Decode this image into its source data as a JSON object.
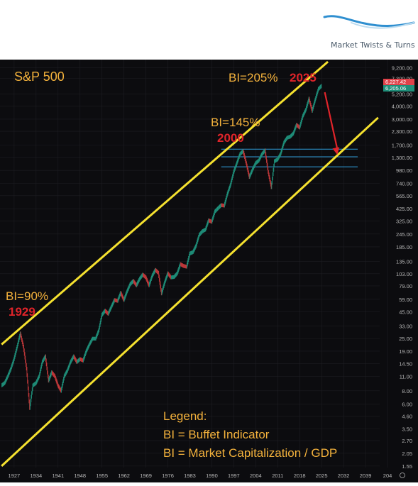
{
  "brand": {
    "name": "Market Twists & Turns"
  },
  "chart_data": {
    "type": "line",
    "title": "S&P 500",
    "scale": "log",
    "ylim": [
      1.5,
      11000
    ],
    "x_ticks": [
      "1927",
      "1934",
      "1941",
      "1948",
      "1955",
      "1962",
      "1969",
      "1976",
      "1983",
      "1990",
      "1997",
      "2004",
      "2011",
      "2018",
      "2025",
      "2032",
      "2039",
      "204"
    ],
    "y_ticks": [
      "9,200.00",
      "7,300.00",
      "5,200.00",
      "4,000.00",
      "3,000.00",
      "2,300.00",
      "1,700.00",
      "1,300.00",
      "980.00",
      "740.00",
      "565.00",
      "425.00",
      "325.00",
      "245.00",
      "185.00",
      "135.00",
      "103.00",
      "79.00",
      "59.00",
      "45.00",
      "33.00",
      "25.00",
      "19.00",
      "14.50",
      "11.00",
      "8.00",
      "6.00",
      "4.60",
      "3.50",
      "2.70",
      "2.05",
      "1.55"
    ],
    "price_labels": {
      "current": "6,227.42",
      "previous": "6,205.06"
    },
    "series": [
      {
        "values": [
          [
            1923,
            9
          ],
          [
            1924,
            9.5
          ],
          [
            1925,
            11
          ],
          [
            1926,
            13
          ],
          [
            1927,
            16
          ],
          [
            1928,
            21
          ],
          [
            1929,
            28
          ],
          [
            1930,
            21
          ],
          [
            1931,
            13
          ],
          [
            1932,
            5.5
          ],
          [
            1933,
            9
          ],
          [
            1934,
            9.5
          ],
          [
            1935,
            11
          ],
          [
            1936,
            15
          ],
          [
            1937,
            17
          ],
          [
            1938,
            10
          ],
          [
            1939,
            12
          ],
          [
            1940,
            11
          ],
          [
            1941,
            9
          ],
          [
            1942,
            8
          ],
          [
            1943,
            11
          ],
          [
            1944,
            12.5
          ],
          [
            1945,
            15
          ],
          [
            1946,
            17
          ],
          [
            1947,
            15
          ],
          [
            1948,
            16
          ],
          [
            1949,
            15.5
          ],
          [
            1950,
            19
          ],
          [
            1951,
            22
          ],
          [
            1952,
            25
          ],
          [
            1953,
            25
          ],
          [
            1954,
            30
          ],
          [
            1955,
            42
          ],
          [
            1956,
            46
          ],
          [
            1957,
            43
          ],
          [
            1958,
            50
          ],
          [
            1959,
            58
          ],
          [
            1960,
            57
          ],
          [
            1961,
            68
          ],
          [
            1962,
            58
          ],
          [
            1963,
            70
          ],
          [
            1964,
            82
          ],
          [
            1965,
            88
          ],
          [
            1966,
            80
          ],
          [
            1967,
            92
          ],
          [
            1968,
            101
          ],
          [
            1969,
            95
          ],
          [
            1970,
            80
          ],
          [
            1971,
            98
          ],
          [
            1972,
            112
          ],
          [
            1973,
            105
          ],
          [
            1974,
            67
          ],
          [
            1975,
            85
          ],
          [
            1976,
            104
          ],
          [
            1977,
            95
          ],
          [
            1978,
            96
          ],
          [
            1979,
            104
          ],
          [
            1980,
            127
          ],
          [
            1981,
            122
          ],
          [
            1982,
            120
          ],
          [
            1983,
            160
          ],
          [
            1984,
            165
          ],
          [
            1985,
            190
          ],
          [
            1986,
            240
          ],
          [
            1987,
            260
          ],
          [
            1988,
            270
          ],
          [
            1989,
            330
          ],
          [
            1990,
            320
          ],
          [
            1991,
            400
          ],
          [
            1992,
            430
          ],
          [
            1993,
            460
          ],
          [
            1994,
            455
          ],
          [
            1995,
            590
          ],
          [
            1996,
            720
          ],
          [
            1997,
            950
          ],
          [
            1998,
            1150
          ],
          [
            1999,
            1400
          ],
          [
            2000,
            1500
          ],
          [
            2001,
            1150
          ],
          [
            2002,
            850
          ],
          [
            2003,
            1000
          ],
          [
            2004,
            1150
          ],
          [
            2005,
            1220
          ],
          [
            2006,
            1400
          ],
          [
            2007,
            1520
          ],
          [
            2008,
            950
          ],
          [
            2009,
            680
          ],
          [
            2010,
            1200
          ],
          [
            2011,
            1250
          ],
          [
            2012,
            1420
          ],
          [
            2013,
            1800
          ],
          [
            2014,
            2000
          ],
          [
            2015,
            2050
          ],
          [
            2016,
            2200
          ],
          [
            2017,
            2650
          ],
          [
            2018,
            2500
          ],
          [
            2019,
            3200
          ],
          [
            2020,
            3700
          ],
          [
            2021,
            4700
          ],
          [
            2022,
            3600
          ],
          [
            2023,
            4600
          ],
          [
            2024,
            5800
          ],
          [
            2025,
            6227
          ]
        ]
      }
    ],
    "channel": {
      "upper": [
        [
          1923,
          22
        ],
        [
          2027,
          10500
        ]
      ],
      "lower": [
        [
          1923,
          1.55
        ],
        [
          2043,
          3100
        ]
      ],
      "color": "#f5e12f"
    },
    "horizontal_levels": [
      1560,
      1320,
      1060
    ],
    "forecast_arrow": {
      "from": [
        2026,
        5400
      ],
      "to": [
        2030,
        1380
      ],
      "color": "#e0242a"
    },
    "annotations": [
      {
        "text": "BI=90%",
        "color": "#f4b23c"
      },
      {
        "text": "1929",
        "color": "#e0242a"
      },
      {
        "text": "BI=145%",
        "color": "#f4b23c"
      },
      {
        "text": "2000",
        "color": "#e0242a"
      },
      {
        "text": "BI=205%",
        "color": "#f4b23c"
      },
      {
        "text": "2025",
        "color": "#e0242a"
      }
    ],
    "legend_lines": [
      "Legend:",
      "BI = Buffet Indicator",
      "BI = Market Capitalization / GDP"
    ],
    "colors": {
      "background": "#0c0c0f",
      "up": "#1f8f7a",
      "down": "#c2383a",
      "level_line": "#2f9bd8",
      "axis_text": "#b8b8b8",
      "grid": "#1d1d22"
    }
  }
}
